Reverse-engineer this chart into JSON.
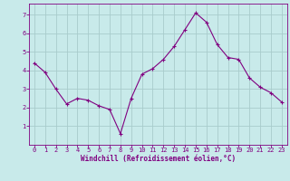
{
  "x": [
    0,
    1,
    2,
    3,
    4,
    5,
    6,
    7,
    8,
    9,
    10,
    11,
    12,
    13,
    14,
    15,
    16,
    17,
    18,
    19,
    20,
    21,
    22,
    23
  ],
  "y": [
    4.4,
    3.9,
    3.0,
    2.2,
    2.5,
    2.4,
    2.1,
    1.9,
    0.6,
    2.5,
    3.8,
    4.1,
    4.6,
    5.3,
    6.2,
    7.1,
    6.6,
    5.4,
    4.7,
    4.6,
    3.6,
    3.1,
    2.8,
    2.3
  ],
  "line_color": "#800080",
  "marker": "+",
  "bg_color": "#c8eaea",
  "grid_color": "#a8cccc",
  "xlabel": "Windchill (Refroidissement éolien,°C)",
  "xlabel_color": "#800080",
  "tick_color": "#800080",
  "spine_color": "#800080",
  "ylim": [
    0.0,
    7.6
  ],
  "xlim": [
    -0.5,
    23.5
  ],
  "yticks": [
    1,
    2,
    3,
    4,
    5,
    6,
    7
  ],
  "xticks": [
    0,
    1,
    2,
    3,
    4,
    5,
    6,
    7,
    8,
    9,
    10,
    11,
    12,
    13,
    14,
    15,
    16,
    17,
    18,
    19,
    20,
    21,
    22,
    23
  ],
  "tick_fontsize": 5.0,
  "xlabel_fontsize": 5.5,
  "xlabel_fontweight": "bold",
  "linewidth": 0.8,
  "markersize": 3.5,
  "markeredgewidth": 0.8
}
